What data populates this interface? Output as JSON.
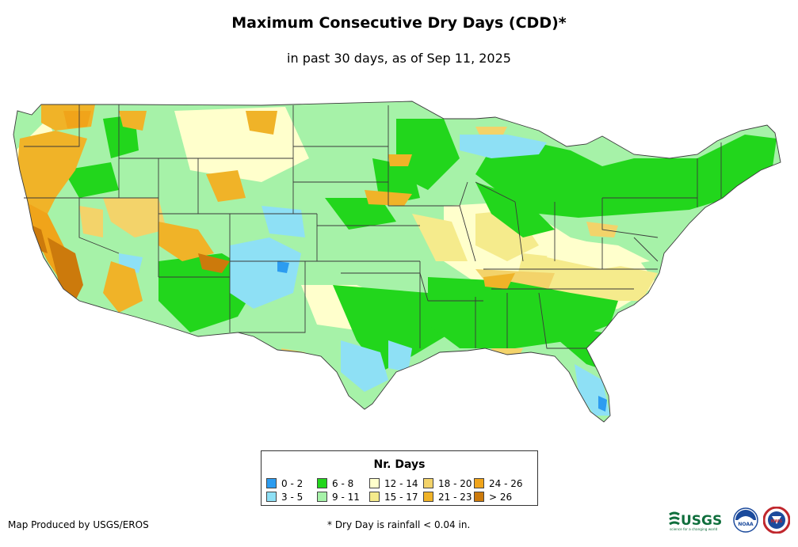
{
  "header": {
    "title": "Maximum Consecutive Dry Days (CDD)*",
    "subtitle": "in past 30 days, as of Sep 11, 2025"
  },
  "colors": {
    "ocean": "#ffffff",
    "state_border": "#3a3a3a",
    "land_base": "#ffffcc"
  },
  "legend": {
    "title": "Nr. Days",
    "items": [
      {
        "label": "0 - 2",
        "color": "#2c9cf0"
      },
      {
        "label": "3 - 5",
        "color": "#8ee0f5"
      },
      {
        "label": "6 - 8",
        "color": "#22d61c"
      },
      {
        "label": "9 - 11",
        "color": "#a6f2a8"
      },
      {
        "label": "12 - 14",
        "color": "#ffffcc"
      },
      {
        "label": "15 - 17",
        "color": "#f5eb8c"
      },
      {
        "label": "18 - 20",
        "color": "#f3d36a"
      },
      {
        "label": "21 - 23",
        "color": "#f0b328"
      },
      {
        "label": "24 - 26",
        "color": "#f0a41a"
      },
      {
        "label": "> 26",
        "color": "#cc7a0c"
      }
    ]
  },
  "footer": {
    "credit": "Map Produced by USGS/EROS",
    "footnote": "* Dry Day is rainfall < 0.04 in."
  },
  "logos": {
    "usgs_text": "USGS",
    "usgs_tagline": "science for a changing world",
    "noaa_text": "NOAA",
    "nws_text": "NWS"
  }
}
